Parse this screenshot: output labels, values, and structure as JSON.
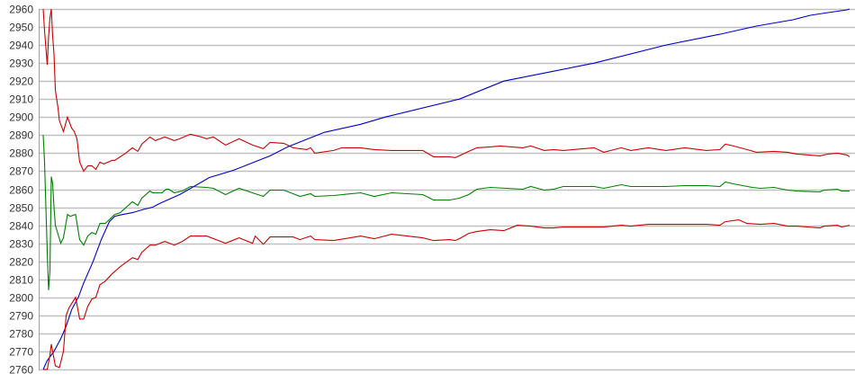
{
  "chart_data": {
    "type": "line",
    "title": "",
    "xlabel": "",
    "ylabel": "",
    "ylim": [
      2760,
      2960
    ],
    "yticks": [
      "2760",
      "2770",
      "2780",
      "2790",
      "2800",
      "2810",
      "2820",
      "2830",
      "2840",
      "2850",
      "2860",
      "2870",
      "2880",
      "2890",
      "2900",
      "2910",
      "2920",
      "2930",
      "2940",
      "2950",
      "2960"
    ],
    "xlim": [
      0,
      597
    ],
    "grid": "horizontal",
    "legend": "none",
    "series": [
      {
        "color": "#cc0000",
        "points": [
          [
            0,
            2960
          ],
          [
            1,
            2948
          ],
          [
            3,
            2929
          ],
          [
            4,
            2945
          ],
          [
            5,
            2955
          ],
          [
            6,
            2960
          ],
          [
            7,
            2945
          ],
          [
            8,
            2935
          ],
          [
            9,
            2915
          ],
          [
            11,
            2905
          ],
          [
            12,
            2898
          ],
          [
            15,
            2892
          ],
          [
            18,
            2900
          ],
          [
            21,
            2894
          ],
          [
            23,
            2892
          ],
          [
            25,
            2888
          ],
          [
            27,
            2875
          ],
          [
            30,
            2870
          ],
          [
            33,
            2873
          ],
          [
            36,
            2873
          ],
          [
            39,
            2871
          ],
          [
            42,
            2875
          ],
          [
            45,
            2874
          ],
          [
            51,
            2876
          ],
          [
            53,
            2876
          ],
          [
            61,
            2880
          ],
          [
            66,
            2883
          ],
          [
            70,
            2881
          ],
          [
            73,
            2885
          ],
          [
            79,
            2889
          ],
          [
            83,
            2887
          ],
          [
            90,
            2889
          ],
          [
            97,
            2887
          ],
          [
            101,
            2888
          ],
          [
            109,
            2890.5
          ],
          [
            117,
            2889
          ],
          [
            121,
            2888
          ],
          [
            126,
            2889
          ],
          [
            135,
            2884.5
          ],
          [
            145,
            2888
          ],
          [
            155,
            2884.5
          ],
          [
            163,
            2882.5
          ],
          [
            168,
            2886
          ],
          [
            178,
            2885.5
          ],
          [
            185,
            2883
          ],
          [
            190,
            2882.5
          ],
          [
            195,
            2882
          ],
          [
            198,
            2883
          ],
          [
            201,
            2880
          ],
          [
            215,
            2881.5
          ],
          [
            221,
            2883
          ],
          [
            235,
            2883
          ],
          [
            245,
            2882
          ],
          [
            258,
            2881.5
          ],
          [
            281,
            2881.5
          ],
          [
            289,
            2878
          ],
          [
            301,
            2878
          ],
          [
            305,
            2877.5
          ],
          [
            315,
            2881
          ],
          [
            321,
            2883
          ],
          [
            331,
            2883.5
          ],
          [
            338,
            2884
          ],
          [
            355,
            2883
          ],
          [
            361,
            2884
          ],
          [
            371,
            2881.5
          ],
          [
            378,
            2882
          ],
          [
            385,
            2881.5
          ],
          [
            408,
            2883
          ],
          [
            415,
            2880.5
          ],
          [
            428,
            2883
          ],
          [
            435,
            2881.5
          ],
          [
            448,
            2883
          ],
          [
            461,
            2881.5
          ],
          [
            475,
            2883
          ],
          [
            491,
            2881.5
          ],
          [
            501,
            2882
          ],
          [
            505,
            2885
          ],
          [
            511,
            2884
          ],
          [
            521,
            2882
          ],
          [
            528,
            2880.5
          ],
          [
            541,
            2881
          ],
          [
            551,
            2880.5
          ],
          [
            558,
            2879.5
          ],
          [
            575,
            2878.5
          ],
          [
            581,
            2879.5
          ],
          [
            588,
            2880
          ],
          [
            595,
            2879
          ],
          [
            597,
            2878
          ]
        ]
      },
      {
        "color": "#008000",
        "points": [
          [
            0,
            2890
          ],
          [
            1,
            2875
          ],
          [
            2,
            2850
          ],
          [
            3,
            2825
          ],
          [
            4,
            2804
          ],
          [
            5,
            2815
          ],
          [
            6,
            2867
          ],
          [
            7,
            2863
          ],
          [
            8,
            2850
          ],
          [
            9,
            2840
          ],
          [
            13,
            2830
          ],
          [
            15,
            2833
          ],
          [
            18,
            2846
          ],
          [
            20,
            2845
          ],
          [
            24,
            2846
          ],
          [
            27,
            2832
          ],
          [
            30,
            2829
          ],
          [
            33,
            2834
          ],
          [
            36,
            2836
          ],
          [
            39,
            2835
          ],
          [
            42,
            2841
          ],
          [
            46,
            2841
          ],
          [
            53,
            2846
          ],
          [
            57,
            2847
          ],
          [
            66,
            2853
          ],
          [
            70,
            2851
          ],
          [
            73,
            2855
          ],
          [
            79,
            2859
          ],
          [
            81,
            2858
          ],
          [
            88,
            2858
          ],
          [
            91,
            2860
          ],
          [
            93,
            2860
          ],
          [
            97,
            2858
          ],
          [
            103,
            2859
          ],
          [
            109,
            2861.5
          ],
          [
            121,
            2861
          ],
          [
            126,
            2860.5
          ],
          [
            135,
            2857
          ],
          [
            145,
            2860.5
          ],
          [
            155,
            2858
          ],
          [
            163,
            2856
          ],
          [
            168,
            2859.5
          ],
          [
            178,
            2859.5
          ],
          [
            185,
            2857.5
          ],
          [
            190,
            2856
          ],
          [
            198,
            2857.5
          ],
          [
            201,
            2856
          ],
          [
            215,
            2856.5
          ],
          [
            235,
            2858
          ],
          [
            245,
            2856
          ],
          [
            258,
            2858
          ],
          [
            281,
            2857
          ],
          [
            289,
            2854
          ],
          [
            301,
            2854
          ],
          [
            308,
            2855
          ],
          [
            315,
            2857
          ],
          [
            321,
            2860
          ],
          [
            331,
            2861
          ],
          [
            355,
            2860
          ],
          [
            361,
            2861.5
          ],
          [
            371,
            2859.5
          ],
          [
            378,
            2860
          ],
          [
            385,
            2861.5
          ],
          [
            408,
            2861.5
          ],
          [
            415,
            2860.5
          ],
          [
            428,
            2862.5
          ],
          [
            435,
            2861.5
          ],
          [
            448,
            2861.5
          ],
          [
            461,
            2861.5
          ],
          [
            475,
            2862
          ],
          [
            491,
            2862
          ],
          [
            501,
            2861.5
          ],
          [
            505,
            2864
          ],
          [
            511,
            2863
          ],
          [
            525,
            2861
          ],
          [
            531,
            2860.5
          ],
          [
            541,
            2861
          ],
          [
            551,
            2859.5
          ],
          [
            558,
            2859
          ],
          [
            575,
            2858.5
          ],
          [
            578,
            2859.5
          ],
          [
            588,
            2860
          ],
          [
            591,
            2859
          ],
          [
            597,
            2859
          ]
        ]
      },
      {
        "color": "#0000cc",
        "points": [
          [
            0,
            2760
          ],
          [
            3,
            2765
          ],
          [
            8,
            2770
          ],
          [
            13,
            2777
          ],
          [
            17,
            2784
          ],
          [
            21,
            2793
          ],
          [
            26,
            2800
          ],
          [
            30,
            2808
          ],
          [
            37,
            2820
          ],
          [
            43,
            2832
          ],
          [
            49,
            2842
          ],
          [
            53,
            2845
          ],
          [
            59,
            2846
          ],
          [
            66,
            2847
          ],
          [
            75,
            2849
          ],
          [
            81,
            2850
          ],
          [
            86,
            2852
          ],
          [
            95,
            2855
          ],
          [
            101,
            2857
          ],
          [
            115,
            2863
          ],
          [
            123,
            2866.5
          ],
          [
            141,
            2870.5
          ],
          [
            168,
            2878.5
          ],
          [
            181,
            2883.5
          ],
          [
            208,
            2891.5
          ],
          [
            235,
            2896
          ],
          [
            253,
            2900
          ],
          [
            308,
            2910
          ],
          [
            341,
            2920
          ],
          [
            408,
            2930
          ],
          [
            461,
            2940
          ],
          [
            501,
            2946
          ],
          [
            528,
            2950.5
          ],
          [
            555,
            2954
          ],
          [
            568,
            2956.5
          ],
          [
            581,
            2958
          ],
          [
            595,
            2959.5
          ],
          [
            597,
            2960
          ]
        ]
      },
      {
        "color": "#cc0000",
        "points": [
          [
            0,
            2760
          ],
          [
            3,
            2760
          ],
          [
            5,
            2768
          ],
          [
            6,
            2774
          ],
          [
            7,
            2770
          ],
          [
            9,
            2762
          ],
          [
            12,
            2761
          ],
          [
            15,
            2770
          ],
          [
            17,
            2790
          ],
          [
            19,
            2794
          ],
          [
            24,
            2800
          ],
          [
            27,
            2788
          ],
          [
            30,
            2788
          ],
          [
            33,
            2795
          ],
          [
            36,
            2799
          ],
          [
            39,
            2800
          ],
          [
            42,
            2807
          ],
          [
            46,
            2809
          ],
          [
            51,
            2813
          ],
          [
            57,
            2817
          ],
          [
            66,
            2822
          ],
          [
            70,
            2821
          ],
          [
            73,
            2825
          ],
          [
            79,
            2829
          ],
          [
            83,
            2829
          ],
          [
            90,
            2831
          ],
          [
            97,
            2829
          ],
          [
            103,
            2831
          ],
          [
            109,
            2834
          ],
          [
            121,
            2834
          ],
          [
            128,
            2832
          ],
          [
            135,
            2830
          ],
          [
            145,
            2833
          ],
          [
            155,
            2830
          ],
          [
            157,
            2834
          ],
          [
            163,
            2829.5
          ],
          [
            168,
            2833.5
          ],
          [
            185,
            2833.5
          ],
          [
            190,
            2832
          ],
          [
            198,
            2834
          ],
          [
            201,
            2832
          ],
          [
            215,
            2831.5
          ],
          [
            235,
            2834
          ],
          [
            245,
            2832.5
          ],
          [
            258,
            2835
          ],
          [
            281,
            2833
          ],
          [
            289,
            2831.5
          ],
          [
            301,
            2832
          ],
          [
            305,
            2831.5
          ],
          [
            308,
            2832.5
          ],
          [
            315,
            2835.5
          ],
          [
            321,
            2836.5
          ],
          [
            331,
            2837.5
          ],
          [
            341,
            2837
          ],
          [
            351,
            2840
          ],
          [
            361,
            2839.5
          ],
          [
            371,
            2838.5
          ],
          [
            378,
            2838.5
          ],
          [
            385,
            2839
          ],
          [
            408,
            2839
          ],
          [
            415,
            2839
          ],
          [
            428,
            2840
          ],
          [
            435,
            2839.5
          ],
          [
            448,
            2840.5
          ],
          [
            461,
            2840.5
          ],
          [
            475,
            2840.5
          ],
          [
            491,
            2840.5
          ],
          [
            501,
            2840
          ],
          [
            505,
            2842
          ],
          [
            515,
            2843
          ],
          [
            521,
            2841
          ],
          [
            531,
            2840.5
          ],
          [
            541,
            2841
          ],
          [
            551,
            2839.5
          ],
          [
            558,
            2839.5
          ],
          [
            575,
            2838.5
          ],
          [
            578,
            2839.5
          ],
          [
            588,
            2840
          ],
          [
            591,
            2839
          ],
          [
            597,
            2840
          ]
        ]
      }
    ],
    "colors": {
      "grid": "#c0c0c0",
      "axis": "#a0a0a0",
      "label": "#333333"
    }
  }
}
